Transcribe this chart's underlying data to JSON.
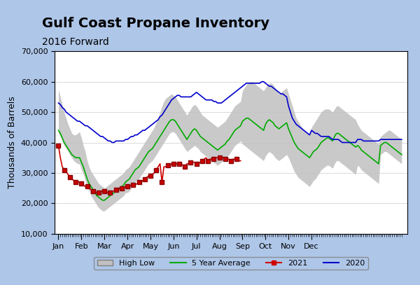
{
  "title": "Gulf Coast Propane Inventory",
  "subtitle": "2016 Forward",
  "ylabel": "Thousands of Barrels",
  "background_color": "#aec6e8",
  "plot_bg_color": "#ffffff",
  "ylim": [
    10000,
    70000
  ],
  "yticks": [
    10000,
    20000,
    30000,
    40000,
    50000,
    60000,
    70000
  ],
  "high": [
    57500,
    55000,
    52500,
    50000,
    48000,
    46000,
    44500,
    43000,
    42500,
    42500,
    43000,
    43500,
    41500,
    39000,
    37000,
    34000,
    32000,
    30500,
    29500,
    28500,
    27500,
    26500,
    26000,
    25500,
    25000,
    25500,
    26000,
    26500,
    27000,
    27500,
    28000,
    28500,
    29000,
    29500,
    30000,
    31000,
    31500,
    32000,
    33000,
    34000,
    35000,
    36000,
    37000,
    38000,
    39000,
    40000,
    41000,
    42000,
    43000,
    44000,
    45000,
    46500,
    48000,
    50000,
    52000,
    53500,
    54500,
    55000,
    55500,
    56000,
    55500,
    55000,
    54000,
    53000,
    52000,
    51000,
    50000,
    49000,
    50000,
    51000,
    52000,
    52500,
    52000,
    51000,
    50000,
    49000,
    48500,
    48000,
    47500,
    47000,
    46500,
    46000,
    45500,
    45000,
    45500,
    46000,
    46500,
    47000,
    48000,
    49000,
    50000,
    51000,
    52000,
    52500,
    53000,
    53500,
    57000,
    58000,
    59000,
    59500,
    60000,
    60000,
    59500,
    59000,
    58500,
    58000,
    57500,
    57000,
    58000,
    59000,
    59500,
    59500,
    59000,
    58000,
    57000,
    56000,
    56500,
    57000,
    57500,
    58000,
    56000,
    54000,
    52000,
    50000,
    48000,
    47000,
    46000,
    45000,
    44000,
    43500,
    43000,
    42500,
    45000,
    46000,
    47000,
    48000,
    49000,
    50000,
    50500,
    51000,
    51000,
    51000,
    50500,
    50000,
    51000,
    52000,
    52000,
    51500,
    51000,
    50500,
    50000,
    49500,
    49000,
    48500,
    48000,
    47500,
    46000,
    45000,
    44000,
    43500,
    43000,
    42500,
    42000,
    41500,
    41000,
    40500,
    40000,
    39500,
    42000,
    42500,
    43000,
    43500,
    44000,
    44000,
    43500,
    43000,
    42500,
    42000,
    41500,
    41000
  ],
  "low": [
    43000,
    42000,
    40500,
    39000,
    38000,
    37000,
    36000,
    35000,
    34000,
    33500,
    33000,
    33000,
    31000,
    29500,
    27500,
    25500,
    24000,
    22500,
    21500,
    20500,
    19500,
    18500,
    18000,
    17500,
    17500,
    18000,
    18500,
    19000,
    19500,
    20000,
    20500,
    21000,
    21500,
    22000,
    22500,
    23500,
    23500,
    24000,
    25000,
    26000,
    27000,
    27500,
    28000,
    29000,
    30000,
    31000,
    32000,
    33000,
    33500,
    34000,
    35000,
    36000,
    37000,
    38000,
    39000,
    40000,
    41000,
    42000,
    43000,
    43500,
    43500,
    43000,
    42000,
    41000,
    40000,
    39000,
    38000,
    37000,
    37500,
    38000,
    38500,
    39000,
    38500,
    38000,
    37000,
    36500,
    36000,
    35500,
    35000,
    34500,
    34000,
    33500,
    33000,
    32500,
    33000,
    33500,
    34000,
    34500,
    35500,
    36000,
    37000,
    38000,
    39000,
    39500,
    40000,
    40500,
    39500,
    39000,
    38500,
    38000,
    37500,
    37000,
    36500,
    36000,
    35500,
    35000,
    34500,
    34000,
    35500,
    36500,
    37000,
    36500,
    36000,
    35000,
    34500,
    34000,
    34500,
    35000,
    35500,
    36000,
    35000,
    33500,
    32000,
    30500,
    29500,
    28500,
    28000,
    27500,
    27000,
    26500,
    26000,
    25500,
    26500,
    27500,
    28000,
    29000,
    30000,
    31000,
    31500,
    32000,
    32500,
    32500,
    32000,
    31500,
    33000,
    34000,
    34000,
    33500,
    33000,
    32500,
    32000,
    31500,
    31000,
    30500,
    30000,
    29500,
    32500,
    32000,
    31000,
    30500,
    30000,
    29500,
    29000,
    28500,
    28000,
    27500,
    27000,
    26500,
    36000,
    36500,
    37000,
    37000,
    36500,
    36000,
    35500,
    35000,
    34500,
    34000,
    33500,
    33000
  ],
  "avg5yr": [
    44000,
    43000,
    41500,
    40000,
    39000,
    38000,
    37000,
    36000,
    35500,
    35000,
    35000,
    35000,
    33500,
    32000,
    30000,
    28000,
    26500,
    25500,
    24500,
    23500,
    22500,
    22000,
    21500,
    21000,
    21000,
    21500,
    22000,
    22500,
    23000,
    23500,
    24000,
    24500,
    25000,
    25500,
    26000,
    27000,
    27500,
    28000,
    29000,
    30000,
    31000,
    31500,
    32000,
    33000,
    34000,
    35000,
    36000,
    37000,
    37500,
    38000,
    39000,
    40000,
    41000,
    42000,
    43000,
    44000,
    45000,
    46000,
    47000,
    47500,
    47500,
    47000,
    46000,
    45000,
    44000,
    43000,
    42000,
    41000,
    42000,
    43000,
    44000,
    44500,
    44000,
    43000,
    42000,
    41500,
    41000,
    40500,
    40000,
    39500,
    39000,
    38500,
    38000,
    37500,
    38000,
    38500,
    39000,
    39500,
    40500,
    41000,
    42000,
    43000,
    44000,
    44500,
    45000,
    45500,
    47000,
    47500,
    48000,
    48000,
    47500,
    47000,
    46500,
    46000,
    45500,
    45000,
    44500,
    44000,
    46000,
    47000,
    47500,
    47000,
    46500,
    45500,
    45000,
    44500,
    45000,
    45500,
    46000,
    46500,
    44500,
    43000,
    41500,
    40000,
    39000,
    38000,
    37500,
    37000,
    36500,
    36000,
    35500,
    35000,
    36000,
    37000,
    37500,
    38000,
    39000,
    40000,
    40500,
    41000,
    41500,
    41500,
    41000,
    40500,
    42000,
    43000,
    43000,
    42500,
    42000,
    41500,
    41000,
    40500,
    40000,
    39500,
    39000,
    38500,
    39000,
    38500,
    37500,
    37000,
    36500,
    36000,
    35500,
    35000,
    34500,
    34000,
    33500,
    33000,
    39000,
    39500,
    40000,
    40000,
    39500,
    39000,
    38500,
    38000,
    37500,
    37000,
    36500,
    36000
  ],
  "line2020": [
    53000,
    52500,
    51500,
    51000,
    50000,
    49500,
    49000,
    48500,
    48000,
    47500,
    47000,
    47000,
    46500,
    46000,
    45500,
    45500,
    45000,
    44500,
    44000,
    43500,
    43000,
    42500,
    42000,
    42000,
    41500,
    41000,
    40500,
    40500,
    40000,
    40000,
    40500,
    40500,
    40500,
    40500,
    40500,
    41000,
    41000,
    41500,
    42000,
    42000,
    42500,
    42500,
    43000,
    43500,
    44000,
    44000,
    44500,
    45000,
    45500,
    46000,
    46500,
    47000,
    47500,
    48500,
    49000,
    50000,
    51000,
    52000,
    53000,
    54000,
    54500,
    55000,
    55500,
    55500,
    55000,
    55000,
    55000,
    55000,
    55000,
    55000,
    55500,
    56000,
    56500,
    56000,
    55500,
    55000,
    54500,
    54000,
    54000,
    54000,
    54000,
    53500,
    53500,
    53000,
    53000,
    53000,
    53500,
    54000,
    54500,
    55000,
    55500,
    56000,
    56500,
    57000,
    57500,
    58000,
    58500,
    59000,
    59500,
    59500,
    59500,
    59500,
    59500,
    59500,
    59500,
    59500,
    60000,
    60000,
    59500,
    59000,
    58500,
    58500,
    58000,
    57500,
    57000,
    56500,
    56000,
    56000,
    55500,
    55000,
    52000,
    50000,
    48000,
    47000,
    46000,
    45500,
    45000,
    44500,
    44000,
    43500,
    43000,
    42500,
    44000,
    43500,
    43000,
    43000,
    42500,
    42000,
    42000,
    42000,
    42000,
    42000,
    41500,
    41000,
    41000,
    41000,
    41000,
    40500,
    40000,
    40000,
    40000,
    40000,
    40000,
    40000,
    40000,
    40000,
    41000,
    41000,
    41000,
    40500,
    40500,
    40500,
    40500,
    40500,
    40500,
    40500,
    40500,
    40500,
    41000,
    41000,
    41000,
    41000,
    41000,
    41000,
    41000,
    41000,
    41000,
    41000,
    41000,
    41000
  ],
  "line2021": [
    39000,
    35000,
    32000,
    31000,
    30500,
    29500,
    28500,
    28000,
    27500,
    27000,
    27000,
    27000,
    26500,
    26000,
    25500,
    25500,
    25000,
    24500,
    24000,
    23500,
    23500,
    23500,
    24000,
    24000,
    24000,
    23500,
    23500,
    23500,
    24000,
    24000,
    24500,
    24500,
    25000,
    25000,
    25000,
    25500,
    25500,
    25500,
    26000,
    26000,
    26000,
    26500,
    27000,
    27000,
    27500,
    28000,
    28500,
    29000,
    29000,
    29500,
    30000,
    31000,
    32000,
    33000,
    27000,
    32000,
    32000,
    32500,
    32500,
    33000,
    33000,
    33000,
    33000,
    33000,
    33000,
    32500,
    32000,
    33000,
    33000,
    33500,
    33500,
    33500,
    33000,
    33000,
    33500,
    34000,
    34500,
    35000,
    34000,
    34500,
    34500,
    34500,
    35000,
    35000,
    35000,
    35000,
    35000,
    34500,
    34500,
    34500,
    34000,
    34500,
    34500,
    34500,
    34000,
    34000,
    null,
    null,
    null,
    null,
    null,
    null,
    null,
    null,
    null,
    null,
    null,
    null,
    null,
    null,
    null,
    null,
    null,
    null,
    null,
    null,
    null,
    null,
    null,
    null,
    null,
    null,
    null,
    null,
    null,
    null,
    null,
    null,
    null,
    null,
    null,
    null,
    null,
    null,
    null,
    null,
    null,
    null,
    null,
    null,
    null,
    null,
    null,
    null,
    null,
    null,
    null,
    null,
    null,
    null,
    null,
    null,
    null,
    null,
    null,
    null,
    null,
    null,
    null,
    null,
    null,
    null,
    null,
    null,
    null,
    null,
    null,
    null,
    null,
    null,
    null,
    null,
    null,
    null,
    null,
    null,
    null,
    null,
    null,
    null
  ],
  "months": [
    "Jan",
    "Feb",
    "Mar",
    "Apr",
    "May",
    "Jun",
    "Jul",
    "Aug",
    "Sep",
    "Oct",
    "Nov",
    "Dec"
  ],
  "month_positions": [
    0,
    12,
    24,
    36,
    48,
    60,
    72,
    84,
    96,
    108,
    120,
    132
  ],
  "color_high_low": "#c0c0c0",
  "color_avg": "#00aa00",
  "color_2021": "#cc0000",
  "color_2020": "#0000cc",
  "marker_2021": "s",
  "title_fontsize": 14,
  "subtitle_fontsize": 10
}
